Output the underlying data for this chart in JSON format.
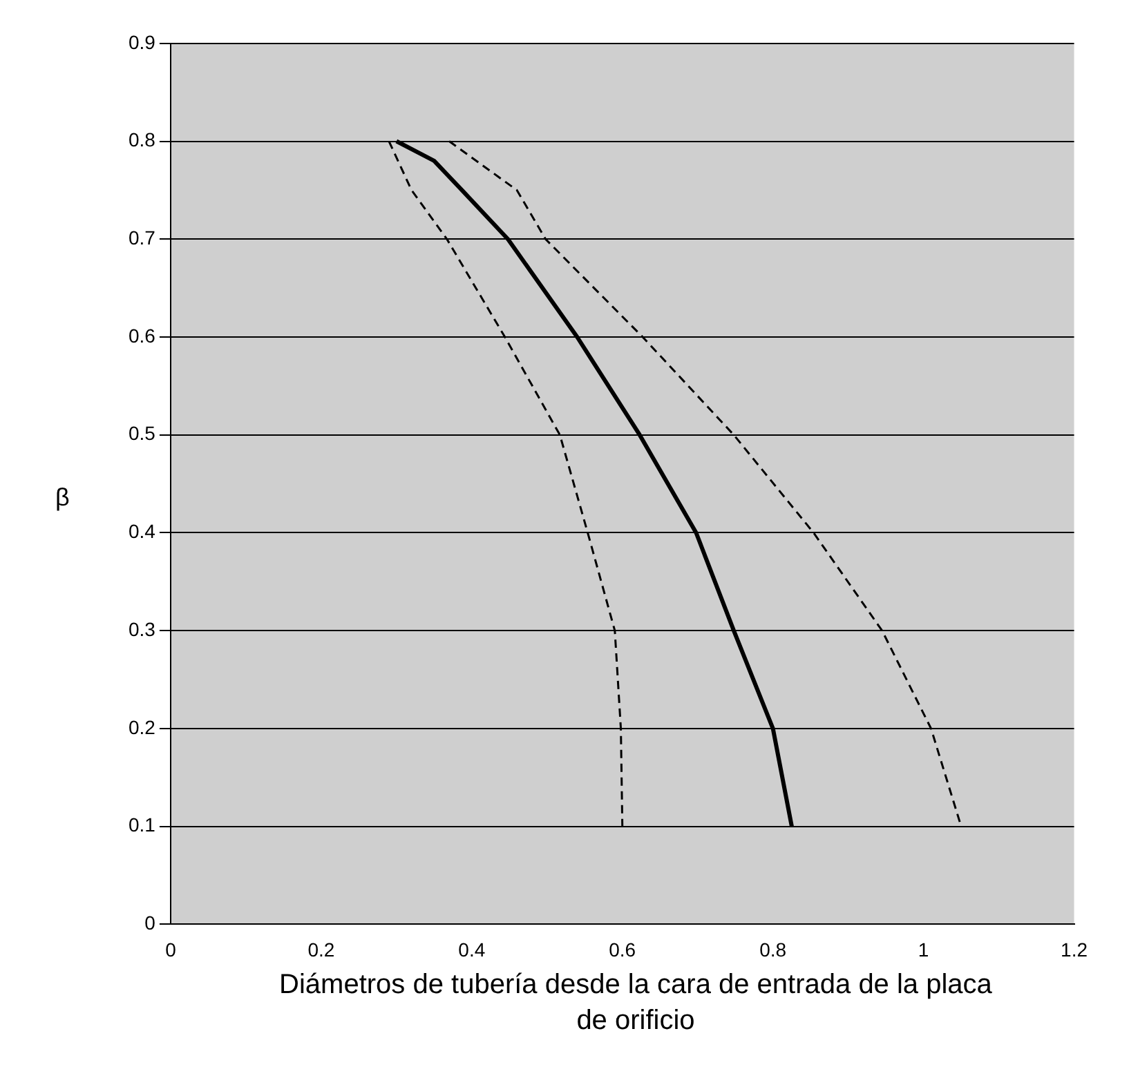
{
  "chart_data": {
    "type": "line",
    "xlabel": "Diámetros de tubería desde la cara de entrada de la placa de orificio",
    "ylabel": "β",
    "xlim": [
      0,
      1.2
    ],
    "xticks": [
      0,
      0.2,
      0.4,
      0.6,
      0.8,
      1,
      1.2
    ],
    "ylim": [
      0,
      0.9
    ],
    "yticks": [
      0,
      0.1,
      0.2,
      0.3,
      0.4,
      0.5,
      0.6,
      0.7,
      0.8,
      0.9
    ],
    "grid": "y",
    "legend": false,
    "marker": "none",
    "series": [
      {
        "color": "#000000",
        "line_style": "dashed",
        "x": [
          0.29,
          0.32,
          0.367,
          0.444,
          0.517,
          0.554,
          0.59,
          0.598,
          0.6
        ],
        "values": [
          0.8,
          0.75,
          0.7,
          0.6,
          0.5,
          0.4,
          0.3,
          0.2,
          0.1
        ]
      },
      {
        "color": "#000000",
        "line_style": "solid",
        "x": [
          0.3,
          0.35,
          0.387,
          0.448,
          0.54,
          0.623,
          0.698,
          0.748,
          0.8,
          0.825
        ],
        "values": [
          0.8,
          0.78,
          0.75,
          0.7,
          0.6,
          0.5,
          0.4,
          0.3,
          0.2,
          0.1
        ]
      },
      {
        "color": "#000000",
        "line_style": "dashed",
        "x": [
          0.37,
          0.46,
          0.498,
          0.627,
          0.748,
          0.854,
          0.945,
          1.01,
          1.05
        ],
        "values": [
          0.8,
          0.75,
          0.7,
          0.6,
          0.5,
          0.4,
          0.3,
          0.2,
          0.1
        ]
      }
    ]
  }
}
